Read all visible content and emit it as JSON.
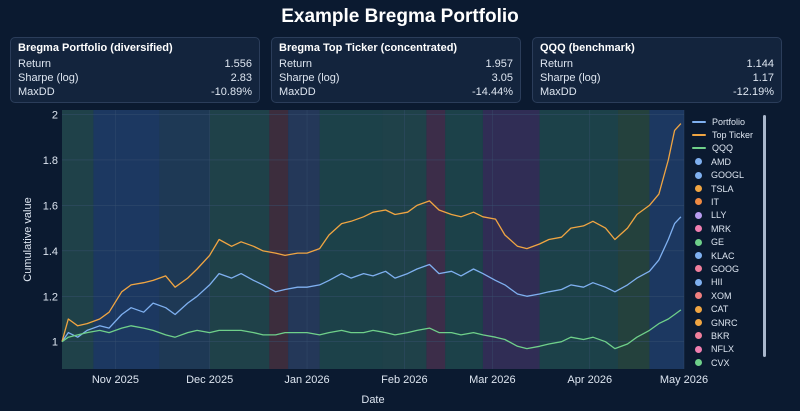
{
  "title": "Example Bregma Portfolio",
  "cards": [
    {
      "title": "Bregma Portfolio (diversified)",
      "metrics": [
        {
          "label": "Return",
          "value": "1.556"
        },
        {
          "label": "Sharpe (log)",
          "value": "2.83"
        },
        {
          "label": "MaxDD",
          "value": "-10.89%"
        }
      ]
    },
    {
      "title": "Bregma Top Ticker (concentrated)",
      "metrics": [
        {
          "label": "Return",
          "value": "1.957"
        },
        {
          "label": "Sharpe (log)",
          "value": "3.05"
        },
        {
          "label": "MaxDD",
          "value": "-14.44%"
        }
      ]
    },
    {
      "title": "QQQ (benchmark)",
      "metrics": [
        {
          "label": "Return",
          "value": "1.144"
        },
        {
          "label": "Sharpe (log)",
          "value": "1.17"
        },
        {
          "label": "MaxDD",
          "value": "-12.19%"
        }
      ]
    }
  ],
  "chart_data": {
    "type": "line",
    "xlabel": "Date",
    "ylabel": "Cumulative value",
    "x_range": [
      "2025-10-15",
      "2026-05-01"
    ],
    "ylim": [
      0.88,
      2.02
    ],
    "yticks": [
      1,
      1.2,
      1.4,
      1.6,
      1.8,
      2
    ],
    "yticklabels": [
      "1",
      "1.2",
      "1.4",
      "1.6",
      "1.8",
      "2"
    ],
    "xticks": [
      {
        "date": "2025-11-01",
        "label": "Nov 2025"
      },
      {
        "date": "2025-12-01",
        "label": "Dec 2025"
      },
      {
        "date": "2026-01-01",
        "label": "Jan 2026"
      },
      {
        "date": "2026-02-01",
        "label": "Feb 2026"
      },
      {
        "date": "2026-03-01",
        "label": "Mar 2026"
      },
      {
        "date": "2026-04-01",
        "label": "Apr 2026"
      },
      {
        "date": "2026-05-01",
        "label": "May 2026"
      }
    ],
    "grid": true,
    "legend_position": "right",
    "series": [
      {
        "name": "Portfolio",
        "color": "#7fb0f0",
        "points": [
          [
            "2025-10-15",
            1.0
          ],
          [
            "2025-10-17",
            1.04
          ],
          [
            "2025-10-20",
            1.02
          ],
          [
            "2025-10-23",
            1.05
          ],
          [
            "2025-10-27",
            1.07
          ],
          [
            "2025-10-30",
            1.06
          ],
          [
            "2025-11-03",
            1.12
          ],
          [
            "2025-11-06",
            1.15
          ],
          [
            "2025-11-10",
            1.13
          ],
          [
            "2025-11-13",
            1.17
          ],
          [
            "2025-11-17",
            1.15
          ],
          [
            "2025-11-20",
            1.12
          ],
          [
            "2025-11-24",
            1.17
          ],
          [
            "2025-11-27",
            1.2
          ],
          [
            "2025-12-01",
            1.25
          ],
          [
            "2025-12-04",
            1.3
          ],
          [
            "2025-12-08",
            1.28
          ],
          [
            "2025-12-11",
            1.3
          ],
          [
            "2025-12-15",
            1.27
          ],
          [
            "2025-12-18",
            1.25
          ],
          [
            "2025-12-22",
            1.22
          ],
          [
            "2025-12-25",
            1.23
          ],
          [
            "2025-12-29",
            1.24
          ],
          [
            "2026-01-01",
            1.24
          ],
          [
            "2026-01-05",
            1.25
          ],
          [
            "2026-01-08",
            1.27
          ],
          [
            "2026-01-12",
            1.3
          ],
          [
            "2026-01-15",
            1.28
          ],
          [
            "2026-01-19",
            1.3
          ],
          [
            "2026-01-22",
            1.29
          ],
          [
            "2026-01-26",
            1.31
          ],
          [
            "2026-01-29",
            1.28
          ],
          [
            "2026-02-02",
            1.3
          ],
          [
            "2026-02-05",
            1.32
          ],
          [
            "2026-02-09",
            1.34
          ],
          [
            "2026-02-12",
            1.3
          ],
          [
            "2026-02-16",
            1.31
          ],
          [
            "2026-02-19",
            1.29
          ],
          [
            "2026-02-23",
            1.32
          ],
          [
            "2026-02-26",
            1.3
          ],
          [
            "2026-03-02",
            1.27
          ],
          [
            "2026-03-05",
            1.25
          ],
          [
            "2026-03-09",
            1.21
          ],
          [
            "2026-03-12",
            1.2
          ],
          [
            "2026-03-16",
            1.21
          ],
          [
            "2026-03-19",
            1.22
          ],
          [
            "2026-03-23",
            1.23
          ],
          [
            "2026-03-26",
            1.25
          ],
          [
            "2026-03-30",
            1.24
          ],
          [
            "2026-04-02",
            1.26
          ],
          [
            "2026-04-06",
            1.24
          ],
          [
            "2026-04-09",
            1.22
          ],
          [
            "2026-04-13",
            1.25
          ],
          [
            "2026-04-16",
            1.28
          ],
          [
            "2026-04-20",
            1.31
          ],
          [
            "2026-04-23",
            1.36
          ],
          [
            "2026-04-26",
            1.45
          ],
          [
            "2026-04-28",
            1.52
          ],
          [
            "2026-04-30",
            1.55
          ]
        ]
      },
      {
        "name": "Top Ticker",
        "color": "#f0a542",
        "points": [
          [
            "2025-10-15",
            1.0
          ],
          [
            "2025-10-17",
            1.1
          ],
          [
            "2025-10-20",
            1.07
          ],
          [
            "2025-10-23",
            1.08
          ],
          [
            "2025-10-27",
            1.1
          ],
          [
            "2025-10-30",
            1.13
          ],
          [
            "2025-11-03",
            1.22
          ],
          [
            "2025-11-06",
            1.25
          ],
          [
            "2025-11-10",
            1.26
          ],
          [
            "2025-11-13",
            1.27
          ],
          [
            "2025-11-17",
            1.29
          ],
          [
            "2025-11-20",
            1.24
          ],
          [
            "2025-11-24",
            1.28
          ],
          [
            "2025-11-27",
            1.32
          ],
          [
            "2025-12-01",
            1.38
          ],
          [
            "2025-12-04",
            1.45
          ],
          [
            "2025-12-08",
            1.42
          ],
          [
            "2025-12-11",
            1.44
          ],
          [
            "2025-12-15",
            1.42
          ],
          [
            "2025-12-18",
            1.4
          ],
          [
            "2025-12-22",
            1.39
          ],
          [
            "2025-12-25",
            1.38
          ],
          [
            "2025-12-29",
            1.39
          ],
          [
            "2026-01-01",
            1.39
          ],
          [
            "2026-01-05",
            1.41
          ],
          [
            "2026-01-08",
            1.47
          ],
          [
            "2026-01-12",
            1.52
          ],
          [
            "2026-01-15",
            1.53
          ],
          [
            "2026-01-19",
            1.55
          ],
          [
            "2026-01-22",
            1.57
          ],
          [
            "2026-01-26",
            1.58
          ],
          [
            "2026-01-29",
            1.56
          ],
          [
            "2026-02-02",
            1.57
          ],
          [
            "2026-02-05",
            1.6
          ],
          [
            "2026-02-09",
            1.62
          ],
          [
            "2026-02-12",
            1.58
          ],
          [
            "2026-02-16",
            1.56
          ],
          [
            "2026-02-19",
            1.55
          ],
          [
            "2026-02-23",
            1.57
          ],
          [
            "2026-02-26",
            1.55
          ],
          [
            "2026-03-02",
            1.54
          ],
          [
            "2026-03-05",
            1.47
          ],
          [
            "2026-03-09",
            1.42
          ],
          [
            "2026-03-12",
            1.41
          ],
          [
            "2026-03-16",
            1.43
          ],
          [
            "2026-03-19",
            1.45
          ],
          [
            "2026-03-23",
            1.46
          ],
          [
            "2026-03-26",
            1.5
          ],
          [
            "2026-03-30",
            1.51
          ],
          [
            "2026-04-02",
            1.53
          ],
          [
            "2026-04-06",
            1.5
          ],
          [
            "2026-04-09",
            1.45
          ],
          [
            "2026-04-13",
            1.5
          ],
          [
            "2026-04-16",
            1.56
          ],
          [
            "2026-04-20",
            1.6
          ],
          [
            "2026-04-23",
            1.65
          ],
          [
            "2026-04-26",
            1.8
          ],
          [
            "2026-04-28",
            1.93
          ],
          [
            "2026-04-30",
            1.96
          ]
        ]
      },
      {
        "name": "QQQ",
        "color": "#6fd08a",
        "points": [
          [
            "2025-10-15",
            1.0
          ],
          [
            "2025-10-17",
            1.02
          ],
          [
            "2025-10-20",
            1.03
          ],
          [
            "2025-10-23",
            1.04
          ],
          [
            "2025-10-27",
            1.05
          ],
          [
            "2025-10-30",
            1.04
          ],
          [
            "2025-11-03",
            1.06
          ],
          [
            "2025-11-06",
            1.07
          ],
          [
            "2025-11-10",
            1.06
          ],
          [
            "2025-11-13",
            1.05
          ],
          [
            "2025-11-17",
            1.03
          ],
          [
            "2025-11-20",
            1.02
          ],
          [
            "2025-11-24",
            1.04
          ],
          [
            "2025-11-27",
            1.05
          ],
          [
            "2025-12-01",
            1.04
          ],
          [
            "2025-12-04",
            1.05
          ],
          [
            "2025-12-08",
            1.05
          ],
          [
            "2025-12-11",
            1.05
          ],
          [
            "2025-12-15",
            1.04
          ],
          [
            "2025-12-18",
            1.03
          ],
          [
            "2025-12-22",
            1.03
          ],
          [
            "2025-12-25",
            1.04
          ],
          [
            "2025-12-29",
            1.04
          ],
          [
            "2026-01-01",
            1.04
          ],
          [
            "2026-01-05",
            1.03
          ],
          [
            "2026-01-08",
            1.04
          ],
          [
            "2026-01-12",
            1.05
          ],
          [
            "2026-01-15",
            1.04
          ],
          [
            "2026-01-19",
            1.04
          ],
          [
            "2026-01-22",
            1.05
          ],
          [
            "2026-01-26",
            1.04
          ],
          [
            "2026-01-29",
            1.03
          ],
          [
            "2026-02-02",
            1.04
          ],
          [
            "2026-02-05",
            1.05
          ],
          [
            "2026-02-09",
            1.06
          ],
          [
            "2026-02-12",
            1.04
          ],
          [
            "2026-02-16",
            1.04
          ],
          [
            "2026-02-19",
            1.03
          ],
          [
            "2026-02-23",
            1.04
          ],
          [
            "2026-02-26",
            1.03
          ],
          [
            "2026-03-02",
            1.02
          ],
          [
            "2026-03-05",
            1.01
          ],
          [
            "2026-03-09",
            0.98
          ],
          [
            "2026-03-12",
            0.97
          ],
          [
            "2026-03-16",
            0.98
          ],
          [
            "2026-03-19",
            0.99
          ],
          [
            "2026-03-23",
            1.0
          ],
          [
            "2026-03-26",
            1.02
          ],
          [
            "2026-03-30",
            1.01
          ],
          [
            "2026-04-02",
            1.02
          ],
          [
            "2026-04-06",
            1.0
          ],
          [
            "2026-04-09",
            0.97
          ],
          [
            "2026-04-13",
            0.99
          ],
          [
            "2026-04-16",
            1.02
          ],
          [
            "2026-04-20",
            1.05
          ],
          [
            "2026-04-23",
            1.08
          ],
          [
            "2026-04-26",
            1.1
          ],
          [
            "2026-04-28",
            1.12
          ],
          [
            "2026-04-30",
            1.14
          ]
        ]
      }
    ],
    "legend_tickers": [
      {
        "name": "AMD",
        "color": "#7fb0f0"
      },
      {
        "name": "GOOGL",
        "color": "#7fb0f0"
      },
      {
        "name": "TSLA",
        "color": "#f0a542"
      },
      {
        "name": "IT",
        "color": "#f08a42"
      },
      {
        "name": "LLY",
        "color": "#b89cf0"
      },
      {
        "name": "MRK",
        "color": "#f07fb0"
      },
      {
        "name": "GE",
        "color": "#6fd08a"
      },
      {
        "name": "KLAC",
        "color": "#7fb0f0"
      },
      {
        "name": "GOOG",
        "color": "#f07f9c"
      },
      {
        "name": "HII",
        "color": "#7fb0f0"
      },
      {
        "name": "XOM",
        "color": "#f07f7f"
      },
      {
        "name": "CAT",
        "color": "#f0a542"
      },
      {
        "name": "GNRC",
        "color": "#f0a542"
      },
      {
        "name": "BKR",
        "color": "#f07f9c"
      },
      {
        "name": "NFLX",
        "color": "#f07fb0"
      },
      {
        "name": "CVX",
        "color": "#6fd08a"
      }
    ],
    "regime_bands": [
      {
        "start": "2025-10-15",
        "end": "2025-10-25",
        "color": "#234a4a"
      },
      {
        "start": "2025-10-25",
        "end": "2025-11-15",
        "color": "#1f3e6a"
      },
      {
        "start": "2025-11-15",
        "end": "2025-12-01",
        "color": "#223f5a"
      },
      {
        "start": "2025-12-01",
        "end": "2025-12-20",
        "color": "#234a4a"
      },
      {
        "start": "2025-12-20",
        "end": "2025-12-26",
        "color": "#4a2f3a"
      },
      {
        "start": "2025-12-26",
        "end": "2026-01-05",
        "color": "#2a3d5f"
      },
      {
        "start": "2026-01-05",
        "end": "2026-01-25",
        "color": "#1f4a4a"
      },
      {
        "start": "2026-01-25",
        "end": "2026-02-08",
        "color": "#234a4a"
      },
      {
        "start": "2026-02-08",
        "end": "2026-02-14",
        "color": "#4a2f4a"
      },
      {
        "start": "2026-02-14",
        "end": "2026-02-26",
        "color": "#1f4a4a"
      },
      {
        "start": "2026-02-26",
        "end": "2026-03-16",
        "color": "#3a2f5a"
      },
      {
        "start": "2026-03-16",
        "end": "2026-04-10",
        "color": "#1f4a4a"
      },
      {
        "start": "2026-04-10",
        "end": "2026-04-20",
        "color": "#2a4a3a"
      },
      {
        "start": "2026-04-20",
        "end": "2026-05-01",
        "color": "#1f3e6a"
      }
    ]
  }
}
